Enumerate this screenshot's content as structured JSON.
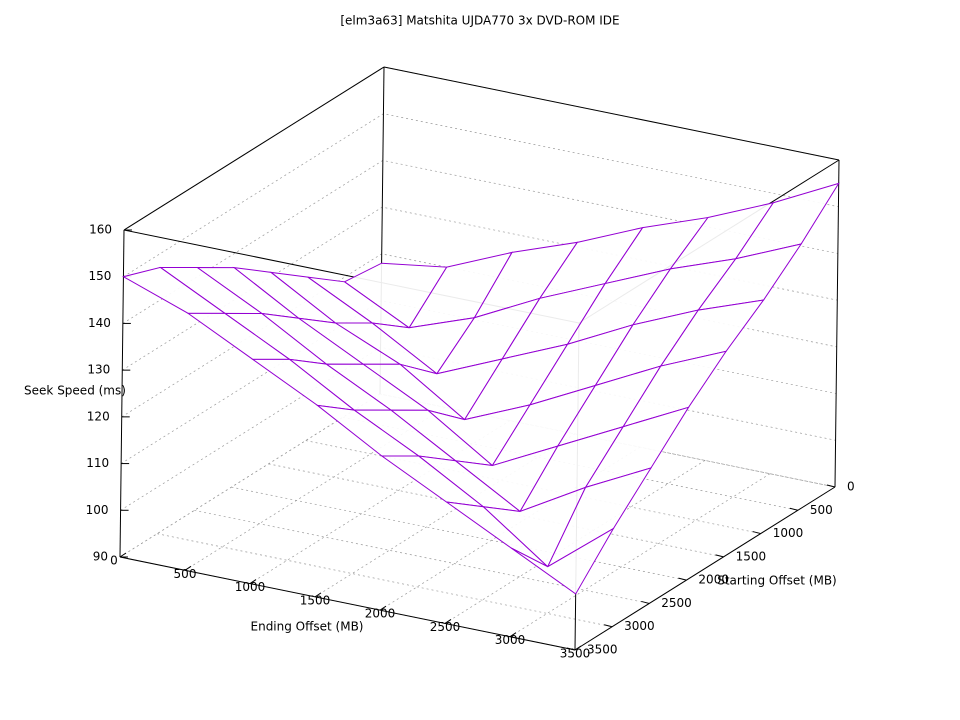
{
  "chart_data": {
    "type": "surface",
    "title": "[elm3a63] Matshita UJDA770 3x DVD-ROM IDE",
    "x_label": "Ending Offset (MB)",
    "y_label": "Starting Offset (MB)",
    "z_label": "Seek Speed (ms)",
    "x": [
      0,
      500,
      1000,
      1500,
      2000,
      2500,
      3000,
      3500
    ],
    "y": [
      0,
      500,
      1000,
      1500,
      2000,
      2500,
      3000,
      3500
    ],
    "z": [
      [
        118,
        120,
        126,
        131,
        137,
        142,
        148,
        155
      ],
      [
        119,
        112,
        117,
        124,
        130,
        136,
        141,
        147
      ],
      [
        125,
        118,
        110,
        116,
        122,
        129,
        135,
        140
      ],
      [
        131,
        123,
        117,
        108,
        114,
        121,
        128,
        134
      ],
      [
        137,
        129,
        122,
        115,
        106,
        113,
        120,
        127
      ],
      [
        142,
        135,
        127,
        120,
        112,
        104,
        112,
        119
      ],
      [
        147,
        140,
        133,
        125,
        118,
        110,
        100,
        111
      ],
      [
        150,
        145,
        138,
        131,
        123,
        116,
        109,
        102
      ]
    ],
    "xlim": [
      0,
      3500
    ],
    "ylim": [
      0,
      3500
    ],
    "zlim": [
      90,
      160
    ],
    "xticks": [
      0,
      500,
      1000,
      1500,
      2000,
      2500,
      3000,
      3500
    ],
    "yticks": [
      0,
      500,
      1000,
      1500,
      2000,
      2500,
      3000,
      3500
    ],
    "zticks": [
      90,
      100,
      110,
      120,
      130,
      140,
      150,
      160
    ],
    "color": "#9400d3",
    "grid": true
  }
}
